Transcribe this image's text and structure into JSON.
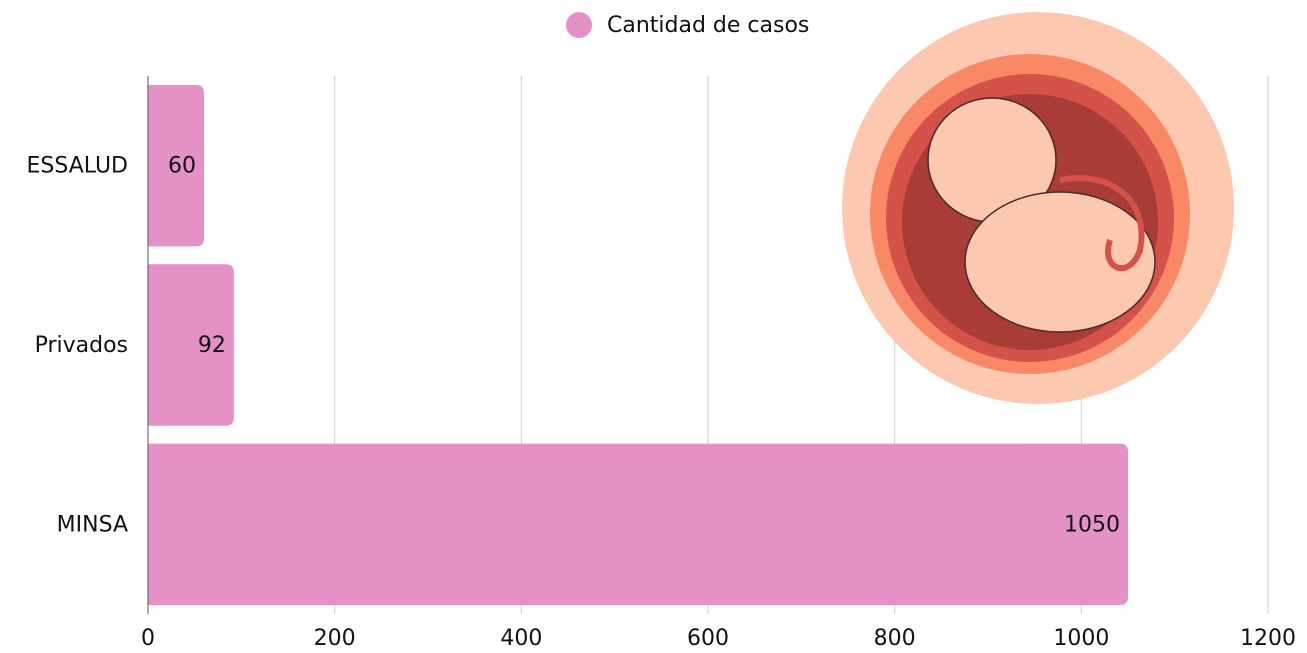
{
  "chart_data": {
    "type": "bar",
    "orientation": "horizontal",
    "categories": [
      "ESSALUD",
      "Privados",
      "MINSA"
    ],
    "series": [
      {
        "name": "Cantidad de casos",
        "color": "#e491c8",
        "values": [
          60,
          92,
          1050
        ]
      }
    ],
    "xlim": [
      0,
      1200
    ],
    "xticks": [
      0,
      200,
      400,
      600,
      800,
      1000,
      1200
    ],
    "grid": true,
    "legend": "top",
    "data_labels": true
  }
}
